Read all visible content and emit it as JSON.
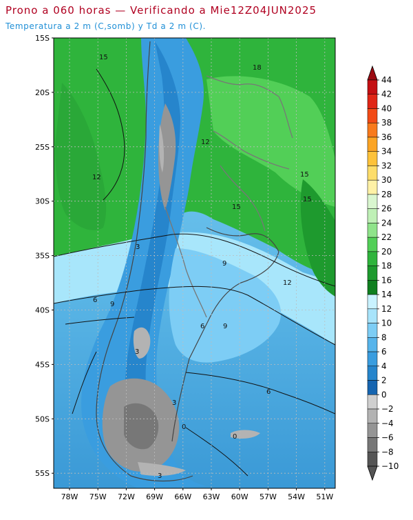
{
  "header": {
    "title": "Prono a 060 horas — Verificando a Mie12Z04JUN2025",
    "subtitle": "Temperatura a 2 m (C,somb) y Td a 2 m (C)."
  },
  "map": {
    "lat_labels": [
      "15S",
      "20S",
      "25S",
      "30S",
      "35S",
      "40S",
      "45S",
      "50S",
      "55S"
    ],
    "lon_labels": [
      "78W",
      "75W",
      "72W",
      "69W",
      "66W",
      "63W",
      "60W",
      "57W",
      "54W",
      "51W"
    ],
    "contour_labels": [
      "15",
      "18",
      "12",
      "12",
      "15",
      "15",
      "15",
      "3",
      "9",
      "12",
      "6",
      "9",
      "6",
      "9",
      "3",
      "6",
      "3",
      "0",
      "3",
      "0"
    ]
  },
  "colorbar": {
    "labels": [
      "44",
      "42",
      "40",
      "38",
      "36",
      "34",
      "32",
      "30",
      "28",
      "26",
      "24",
      "22",
      "20",
      "18",
      "16",
      "14",
      "12",
      "10",
      "8",
      "6",
      "4",
      "2",
      "0",
      "−2",
      "−4",
      "−6",
      "−8",
      "−10"
    ],
    "colors": [
      "#9b0b12",
      "#c40f12",
      "#e02616",
      "#f24a16",
      "#f87a1c",
      "#fba424",
      "#fdc23a",
      "#fddd6a",
      "#fef1a6",
      "#d9f6cf",
      "#bff0b6",
      "#8fe38a",
      "#52cf57",
      "#2fb43c",
      "#1e9a2e",
      "#0f7f1f",
      "#c9f2ff",
      "#a8e4fb",
      "#7dcdf5",
      "#56b4eb",
      "#3a9ddf",
      "#2685cc",
      "#1665b0",
      "#cfcfcf",
      "#b3b3b3",
      "#959595",
      "#777777",
      "#555555"
    ]
  }
}
